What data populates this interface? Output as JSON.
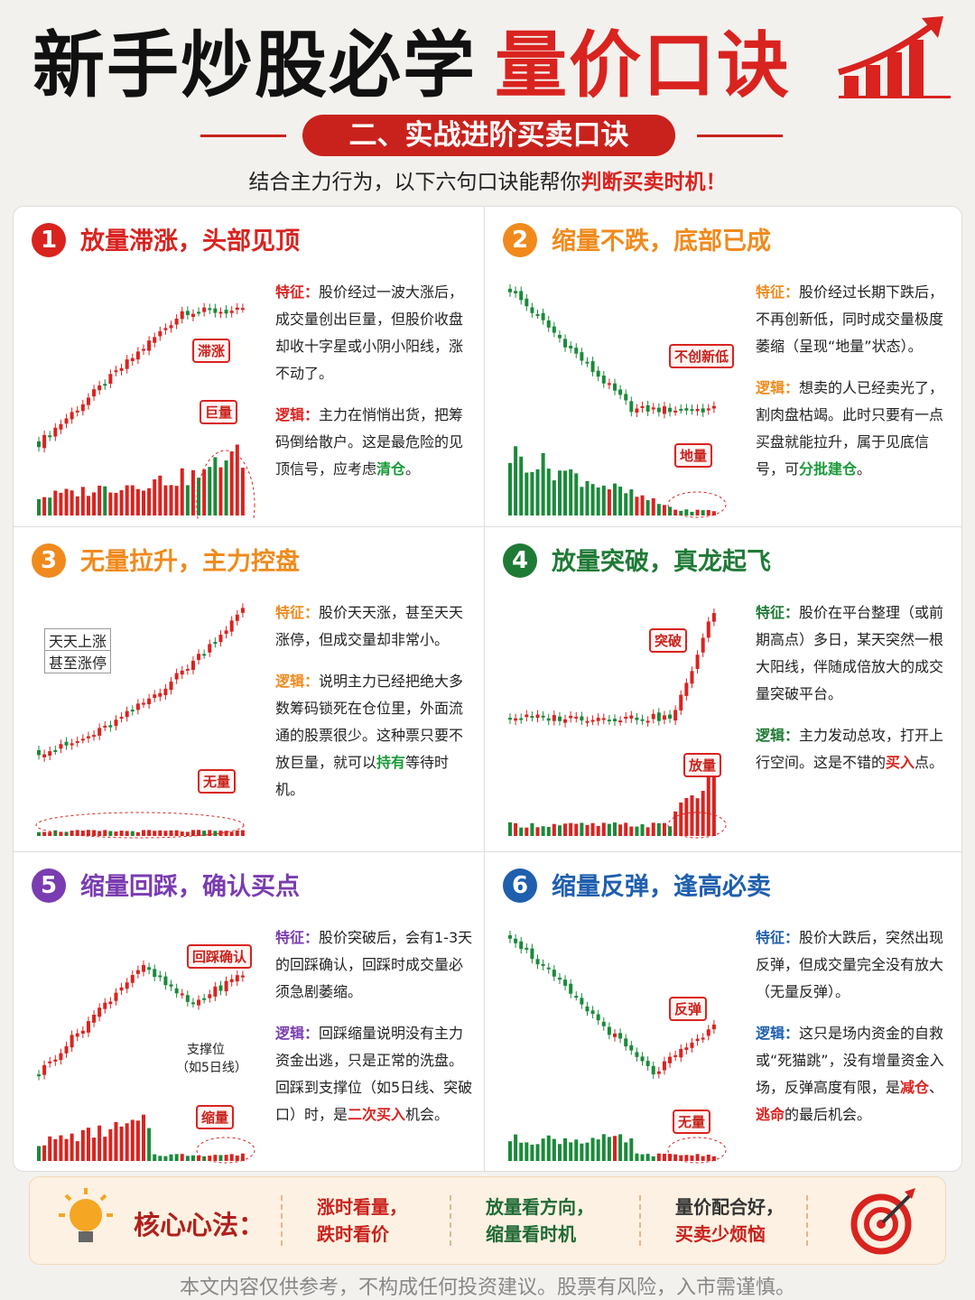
{
  "header": {
    "title": "新手炒股必学",
    "title_highlight": "量价口诀",
    "section": "二、实战进阶买卖口诀",
    "intro": "结合主力行为，以下六句口诀能帮你",
    "intro_highlight": "判断买卖时机！"
  },
  "panels": [
    {
      "number": "1",
      "title": "放量滞涨，头部见顶",
      "color": "#d9231f",
      "highlight_color": "#1a9a3a",
      "feature_label": "特征：",
      "feature": "股价经过一波大涨后，成交量创出巨量，但股价收盘却收十字星或小阴小阳线，涨不动了。",
      "logic_label": "逻辑：",
      "logic": [
        "主力在悄悄出货，把筹码倒给散户。这是最危险的见顶信号，应考虑",
        "清仓",
        "。"
      ],
      "annotations": [
        "滞涨",
        "巨量"
      ]
    },
    {
      "number": "2",
      "title": "缩量不跌，底部已成",
      "color": "#f08a1c",
      "highlight_color": "#1a9a3a",
      "feature_label": "特征：",
      "feature": "股价经过长期下跌后，不再创新低，同时成交量极度萎缩（呈现“地量”状态）。",
      "logic_label": "逻辑：",
      "logic": [
        "想卖的人已经卖光了，割肉盘枯竭。此时只要有一点买盘就能拉升，属于见底信号，可",
        "分批建仓",
        "。"
      ],
      "annotations": [
        "不创新低",
        "地量"
      ]
    },
    {
      "number": "3",
      "title": "无量拉升，主力控盘",
      "color": "#f08a1c",
      "highlight_color": "#1a9a3a",
      "feature_label": "特征：",
      "feature": "股价天天涨，甚至天天涨停，但成交量却非常小。",
      "logic_label": "逻辑：",
      "logic": [
        "说明主力已经把绝大多数筹码锁死在仓位里，外面流通的股票很少。这种票只要不放巨量，就可以",
        "持有",
        "等待时机。"
      ],
      "annotations": [
        "天天上涨",
        "甚至涨停",
        "无量"
      ]
    },
    {
      "number": "4",
      "title": "放量突破，真龙起飞",
      "color": "#1f7a36",
      "highlight_color": "#d9231f",
      "feature_label": "特征：",
      "feature": "股价在平台整理（或前期高点）多日，某天突然一根大阳线，伴随成倍放大的成交量突破平台。",
      "logic_label": "逻辑：",
      "logic": [
        "主力发动总攻，打开上行空间。这是不错的",
        "买入",
        "点。"
      ],
      "annotations": [
        "突破",
        "放量"
      ]
    },
    {
      "number": "5",
      "title": "缩量回踩，确认买点",
      "color": "#7a3cb0",
      "highlight_color": "#d9231f",
      "feature_label": "特征：",
      "feature": "股价突破后，会有1-3天的回踩确认，回踩时成交量必须急剧萎缩。",
      "logic_label": "逻辑：",
      "logic": [
        "回踩缩量说明没有主力资金出逃，只是正常的洗盘。回踩到支撑位（如5日线、突破口）时，是",
        "二次买入",
        "机会。"
      ],
      "annotations": [
        "回踩确认",
        "支撑位",
        "（如5日线）",
        "缩量"
      ]
    },
    {
      "number": "6",
      "title": "缩量反弹，逢高必卖",
      "color": "#1f5fae",
      "highlight_color": "#d9231f",
      "feature_label": "特征：",
      "feature": "股价大跌后，突然出现反弹，但成交量完全没有放大（无量反弹）。",
      "logic_label": "逻辑：",
      "logic": [
        "这只是场内资金的自救或“死猫跳”，没有增量资金入场，反弹高度有限，是",
        "减仓",
        "、",
        "逃命",
        "的最后机会。"
      ],
      "annotations": [
        "反弹",
        "无量"
      ]
    }
  ],
  "summary": {
    "label": "核心心法：",
    "items": [
      [
        "涨时看量，",
        "跌时看价"
      ],
      [
        "放量看方向，",
        "缩量看时机"
      ],
      [
        "量价配合好，",
        "买卖少烦恼"
      ]
    ]
  },
  "footer": "本文内容仅供参考，不构成任何投资建议。股票有风险，入市需谨慎。"
}
